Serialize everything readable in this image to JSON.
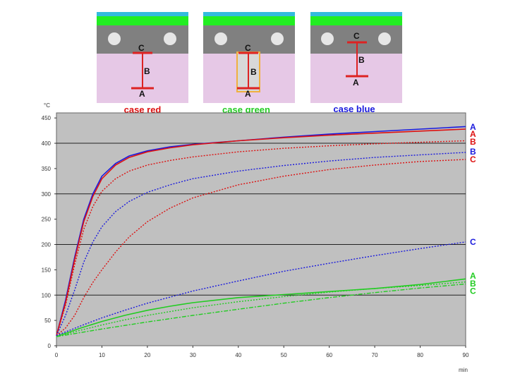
{
  "colors": {
    "red": "#dd1111",
    "blue": "#1a1add",
    "green": "#22cc22",
    "plot_bg": "#c0c0c0",
    "gray_layer": "#808080",
    "pink_layer": "#e6c8e6",
    "green_layer": "#22ee22",
    "cyan_layer": "#33bbdd",
    "marker": "#dd2222"
  },
  "diagrams": [
    {
      "title": "case red",
      "title_color": "#dd1111",
      "labels": [
        "C",
        "B",
        "A"
      ]
    },
    {
      "title": "case green",
      "title_color": "#22cc22",
      "labels": [
        "C",
        "B",
        "A"
      ]
    },
    {
      "title": "case blue",
      "title_color": "#1a1add",
      "labels": [
        "C",
        "B",
        "A"
      ]
    }
  ],
  "chart_data": {
    "type": "line",
    "title": "",
    "xlabel": "min",
    "ylabel": "°C",
    "xlim": [
      0,
      90
    ],
    "ylim": [
      0,
      460
    ],
    "x_ticks": [
      "0",
      "10",
      "20",
      "30",
      "40",
      "50",
      "60",
      "70",
      "80",
      "90"
    ],
    "y_ticks": [
      "0",
      "50",
      "100",
      "150",
      "200",
      "250",
      "300",
      "350",
      "400",
      "450"
    ],
    "grid": "horizontal",
    "series": [
      {
        "name": "A",
        "case": "blue",
        "color": "#1a1add",
        "style": "solid",
        "x": [
          0,
          2,
          4,
          6,
          8,
          10,
          13,
          16,
          20,
          25,
          30,
          40,
          50,
          60,
          70,
          80,
          90
        ],
        "y": [
          20,
          90,
          175,
          250,
          300,
          335,
          360,
          375,
          385,
          393,
          398,
          405,
          412,
          418,
          423,
          428,
          433
        ]
      },
      {
        "name": "A",
        "case": "red",
        "color": "#dd1111",
        "style": "solid",
        "x": [
          0,
          2,
          4,
          6,
          8,
          10,
          13,
          16,
          20,
          25,
          30,
          40,
          50,
          60,
          70,
          80,
          90
        ],
        "y": [
          20,
          85,
          170,
          245,
          295,
          330,
          357,
          372,
          383,
          391,
          397,
          405,
          411,
          416,
          420,
          424,
          428
        ]
      },
      {
        "name": "B",
        "case": "red",
        "color": "#dd1111",
        "style": "dotted",
        "x": [
          0,
          2,
          4,
          6,
          8,
          10,
          13,
          16,
          20,
          25,
          30,
          40,
          50,
          60,
          70,
          80,
          90
        ],
        "y": [
          20,
          80,
          160,
          230,
          275,
          305,
          330,
          345,
          357,
          366,
          373,
          383,
          390,
          395,
          399,
          402,
          405
        ]
      },
      {
        "name": "B",
        "case": "blue",
        "color": "#1a1add",
        "style": "dotted",
        "x": [
          0,
          2,
          4,
          6,
          8,
          10,
          13,
          16,
          20,
          25,
          30,
          40,
          50,
          60,
          70,
          80,
          90
        ],
        "y": [
          20,
          60,
          110,
          165,
          205,
          235,
          265,
          285,
          303,
          318,
          330,
          345,
          356,
          365,
          372,
          377,
          382
        ]
      },
      {
        "name": "C",
        "case": "red",
        "color": "#dd1111",
        "style": "dotted",
        "x": [
          0,
          2,
          4,
          6,
          8,
          10,
          13,
          16,
          20,
          25,
          30,
          40,
          50,
          60,
          70,
          80,
          90
        ],
        "y": [
          20,
          35,
          60,
          95,
          125,
          150,
          185,
          215,
          245,
          272,
          292,
          318,
          335,
          348,
          357,
          364,
          368
        ]
      },
      {
        "name": "C",
        "case": "blue",
        "color": "#1a1add",
        "style": "dotted",
        "x": [
          0,
          5,
          10,
          15,
          20,
          30,
          40,
          50,
          60,
          70,
          80,
          90
        ],
        "y": [
          20,
          38,
          55,
          70,
          84,
          108,
          128,
          147,
          163,
          178,
          192,
          205
        ]
      },
      {
        "name": "A",
        "case": "green",
        "color": "#22cc22",
        "style": "solid",
        "x": [
          0,
          5,
          10,
          15,
          20,
          25,
          30,
          40,
          50,
          60,
          70,
          80,
          90
        ],
        "y": [
          18,
          34,
          48,
          60,
          70,
          78,
          85,
          95,
          101,
          107,
          113,
          121,
          132
        ]
      },
      {
        "name": "B",
        "case": "green",
        "color": "#22cc22",
        "style": "dotted",
        "x": [
          0,
          5,
          10,
          15,
          20,
          30,
          40,
          50,
          60,
          70,
          80,
          90
        ],
        "y": [
          18,
          30,
          41,
          51,
          60,
          75,
          87,
          97,
          106,
          113,
          119,
          126
        ]
      },
      {
        "name": "C",
        "case": "green",
        "color": "#22cc22",
        "style": "dashdot",
        "x": [
          0,
          10,
          20,
          30,
          40,
          50,
          60,
          70,
          80,
          90
        ],
        "y": [
          18,
          33,
          47,
          60,
          72,
          84,
          95,
          105,
          114,
          122
        ]
      }
    ],
    "end_labels": [
      {
        "text": "A",
        "color": "#1a1add",
        "y": 432
      },
      {
        "text": "A",
        "color": "#dd1111",
        "y": 418
      },
      {
        "text": "B",
        "color": "#dd1111",
        "y": 403
      },
      {
        "text": "B",
        "color": "#1a1add",
        "y": 383
      },
      {
        "text": "C",
        "color": "#dd1111",
        "y": 368
      },
      {
        "text": "C",
        "color": "#1a1add",
        "y": 205
      },
      {
        "text": "A",
        "color": "#22cc22",
        "y": 138
      },
      {
        "text": "B",
        "color": "#22cc22",
        "y": 123
      },
      {
        "text": "C",
        "color": "#22cc22",
        "y": 108
      }
    ]
  }
}
